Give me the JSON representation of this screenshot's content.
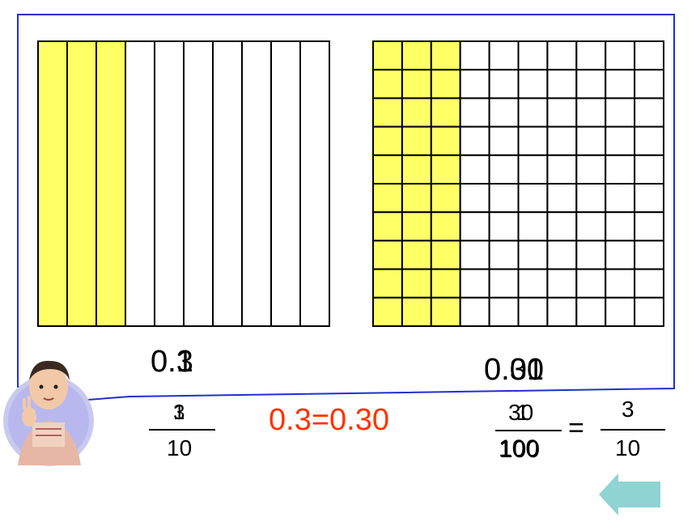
{
  "colors": {
    "frame": "#1f2fd0",
    "shade": "#ffff66",
    "grid_line": "#000000",
    "equation": "#ff3300",
    "arrow": "#8fd3d3"
  },
  "left_model": {
    "columns": 10,
    "rows": 1,
    "shaded_columns": 3
  },
  "right_model": {
    "columns": 10,
    "rows": 10,
    "shaded_columns": 3
  },
  "labels": {
    "left_decimal_a": "0.1",
    "left_decimal_b": "0.3",
    "right_decimal_a": "0.01",
    "right_decimal_b": "0.30",
    "left_frac_num_a": "1",
    "left_frac_num_b": "3",
    "left_frac_den": "10",
    "equation": "0.3=0.30",
    "right_frac_num_a": "1",
    "right_frac_num_b": "30",
    "right_frac_den_a": "100",
    "right_frac_den_b": "100",
    "equals_sign": "=",
    "simplified_num": "3",
    "simplified_den": "10"
  },
  "icons": {
    "character": "boy-thinking-icon",
    "back": "back-arrow-icon"
  }
}
